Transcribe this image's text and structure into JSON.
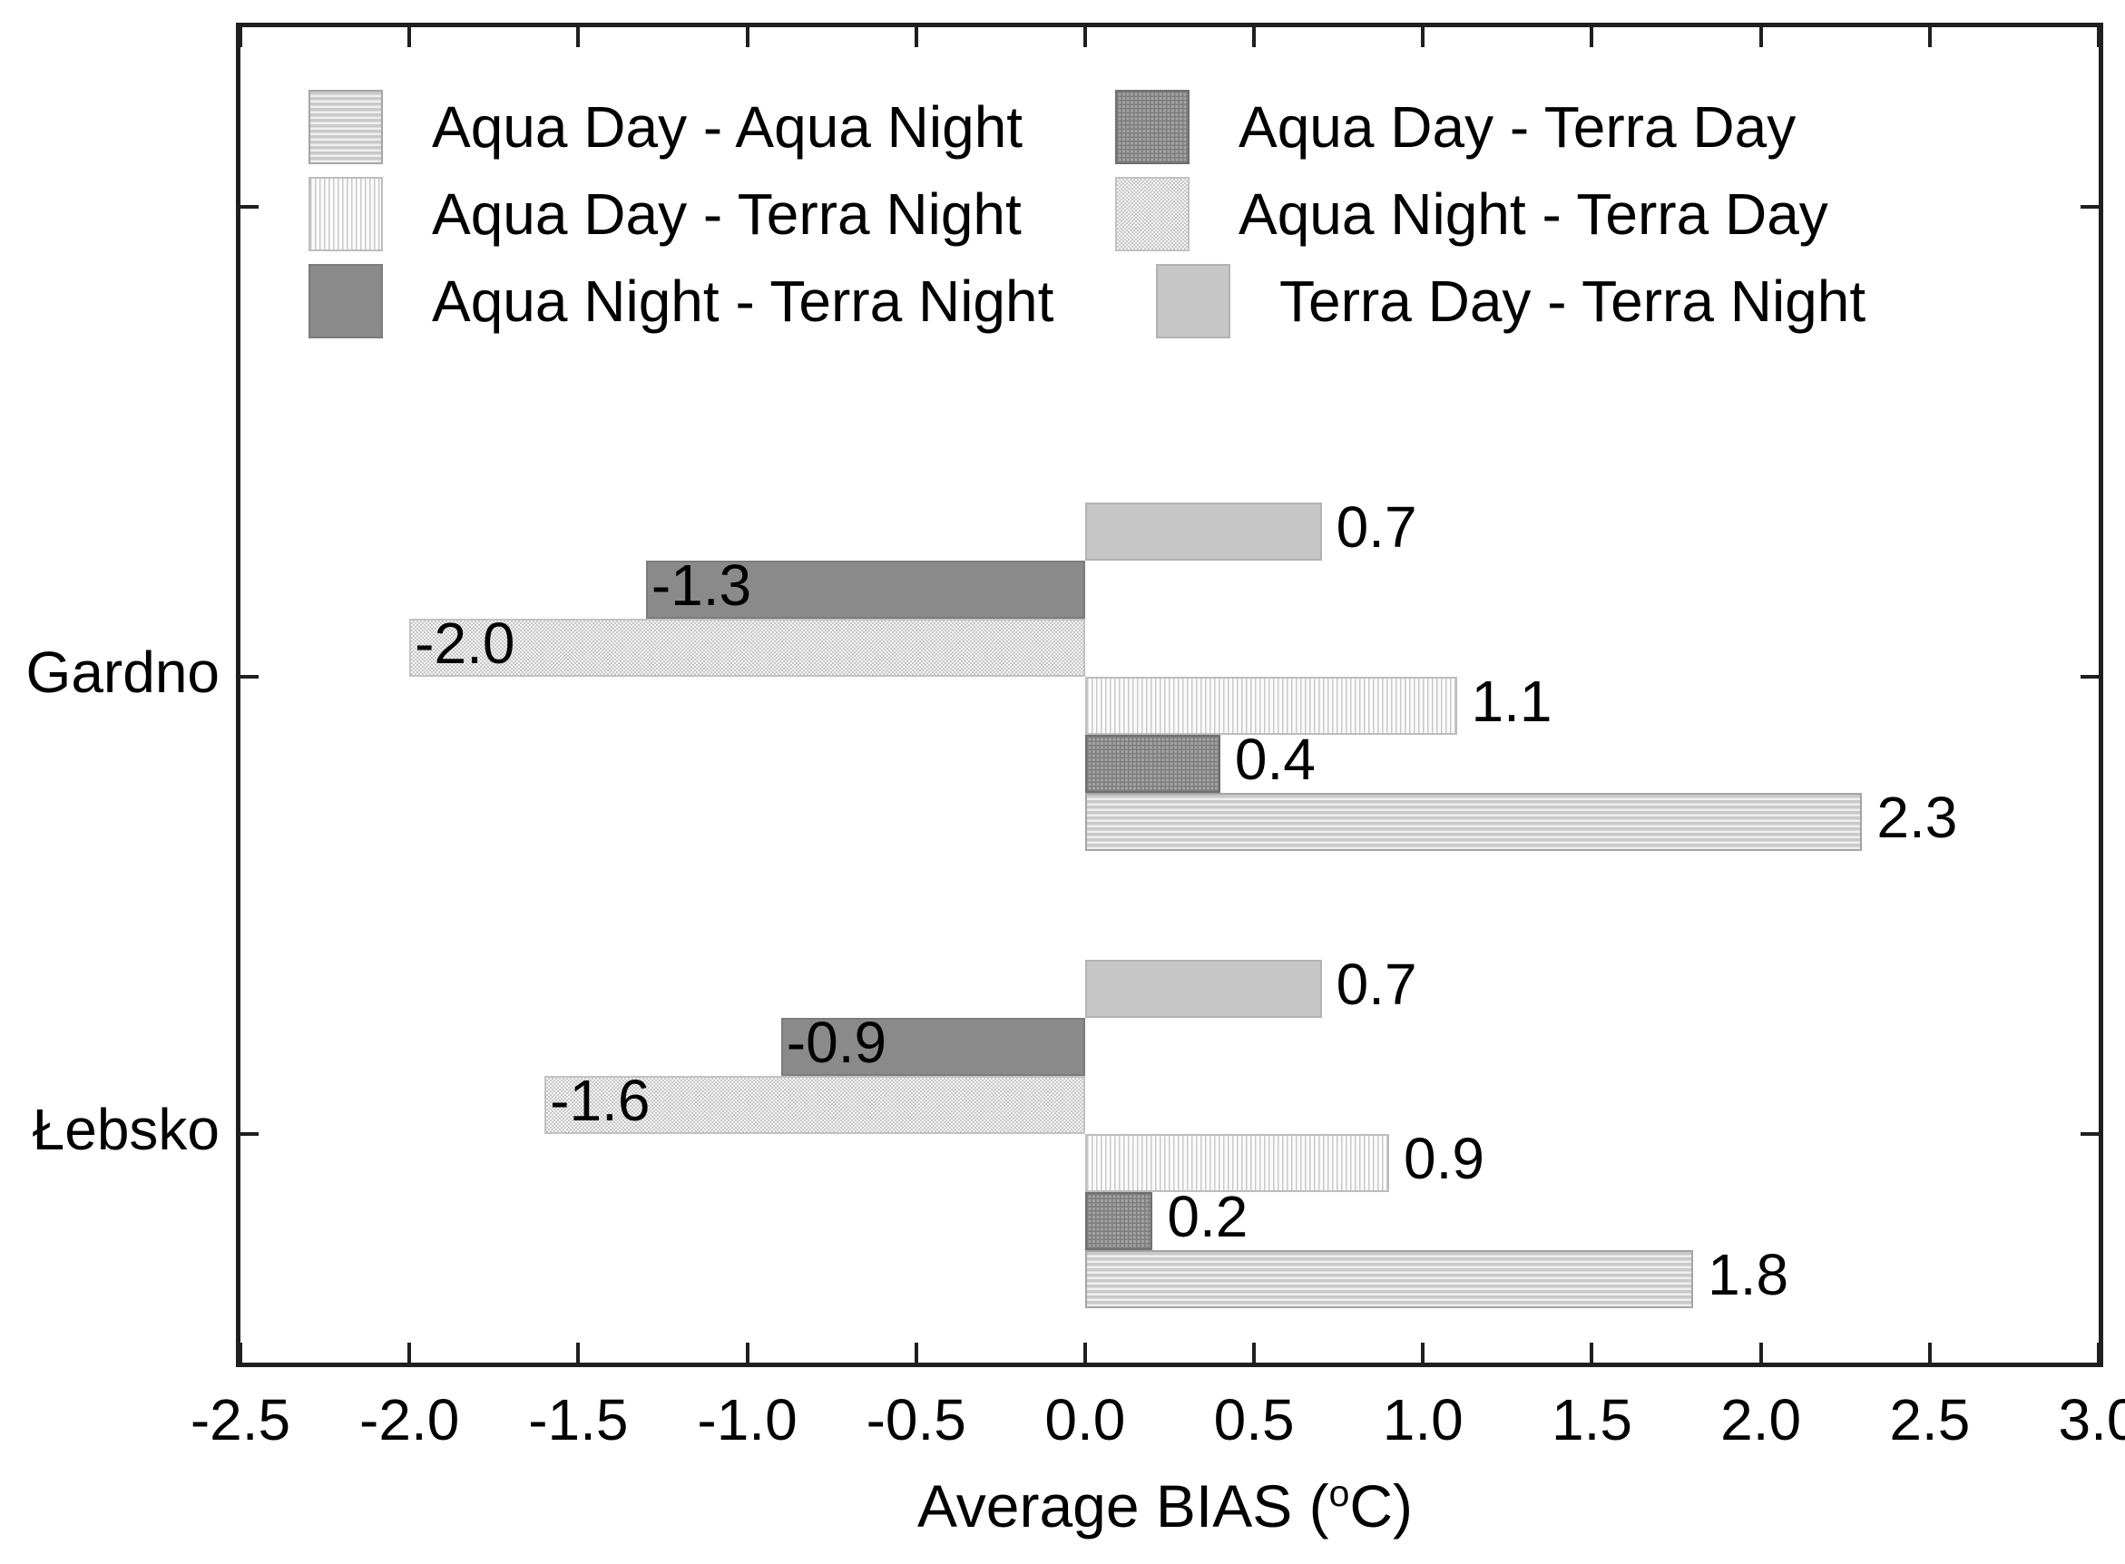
{
  "figure": {
    "background": "#ffffff"
  },
  "axis_title": {
    "prefix": "Average BIAS (",
    "degree": "o",
    "suffix": "C)"
  },
  "chart_data": {
    "type": "bar",
    "orientation": "horizontal",
    "title": "",
    "xlabel": "Average BIAS (oC)",
    "ylabel": "",
    "xlim": [
      -2.5,
      3.0
    ],
    "xtick_step": 0.5,
    "xticks": [
      "-2.5",
      "-2.0",
      "-1.5",
      "-1.0",
      "-0.5",
      "0.0",
      "0.5",
      "1.0",
      "1.5",
      "2.0",
      "2.5",
      "3.0"
    ],
    "categories": [
      "Gardno",
      "Łebsko"
    ],
    "grid": false,
    "legend_position": "top-inside",
    "bar_order_top_to_bottom": [
      "Terra Day - Terra Night",
      "Aqua Night - Terra Night",
      "Aqua Night - Terra Day",
      "Aqua Day - Terra Night",
      "Aqua Day - Terra Day",
      "Aqua Day - Aqua Night"
    ],
    "series": [
      {
        "name": "Aqua Day - Aqua Night",
        "pattern": "horizontal-stripes",
        "values": [
          2.3,
          1.8
        ],
        "labels": [
          "2.3",
          "1.8"
        ]
      },
      {
        "name": "Aqua Day - Terra Day",
        "pattern": "crosshatch-dark",
        "values": [
          0.4,
          0.2
        ],
        "labels": [
          "0.4",
          "0.2"
        ]
      },
      {
        "name": "Aqua Day - Terra Night",
        "pattern": "vertical-stripes",
        "values": [
          1.1,
          0.9
        ],
        "labels": [
          "1.1",
          "0.9"
        ]
      },
      {
        "name": "Aqua Night - Terra Day",
        "pattern": "checker-light",
        "values": [
          -2.0,
          -1.6
        ],
        "labels": [
          "-2.0",
          "-1.6"
        ]
      },
      {
        "name": "Aqua Night - Terra Night",
        "pattern": "solid-dark",
        "values": [
          -1.3,
          -0.9
        ],
        "labels": [
          "-1.3",
          "-0.9"
        ]
      },
      {
        "name": "Terra Day - Terra Night",
        "pattern": "solid-light",
        "values": [
          0.7,
          0.7
        ],
        "labels": [
          "0.7",
          "0.7"
        ]
      }
    ],
    "colors": {
      "solid_dark": "#8a8a8a",
      "solid_light": "#c6c6c6",
      "stripe_gray": "#c9c9c9",
      "axis": "#1f1f1f",
      "text": "#000000"
    }
  },
  "legend": {
    "items": [
      {
        "label": "Aqua Day - Aqua Night",
        "pattern": "horizontal-stripes"
      },
      {
        "label": "Aqua Day - Terra Day",
        "pattern": "crosshatch-dark"
      },
      {
        "label": "Aqua Day - Terra Night",
        "pattern": "vertical-stripes"
      },
      {
        "label": "Aqua Night - Terra Day",
        "pattern": "checker-light"
      },
      {
        "label": "Aqua Night - Terra Night",
        "pattern": "solid-dark"
      },
      {
        "label": "Terra Day - Terra Night",
        "pattern": "solid-light"
      }
    ]
  }
}
